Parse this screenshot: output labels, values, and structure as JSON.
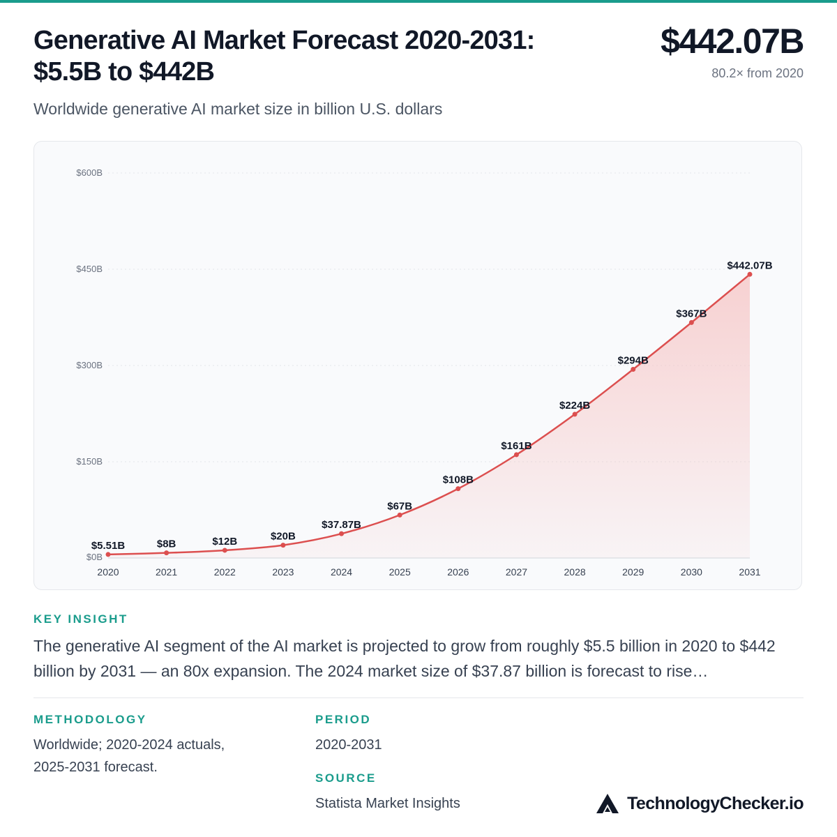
{
  "header": {
    "title_line1": "Generative AI Market Forecast 2020-2031:",
    "title_line2": "$5.5B to $442B",
    "headline_value": "$442.07B",
    "headline_sub": "80.2× from 2020",
    "subtitle": "Worldwide generative AI market size in billion U.S. dollars"
  },
  "chart_data": {
    "type": "area",
    "title": "Worldwide generative AI market size in billion U.S. dollars",
    "categories": [
      "2020",
      "2021",
      "2022",
      "2023",
      "2024",
      "2025",
      "2026",
      "2027",
      "2028",
      "2029",
      "2030",
      "2031"
    ],
    "series": [
      {
        "values": [
          5.51,
          8,
          12,
          20,
          37.87,
          67,
          108,
          161,
          224,
          294,
          367,
          442.07
        ],
        "labels": [
          "$5.51B",
          "$8B",
          "$12B",
          "$20B",
          "$37.87B",
          "$67B",
          "$108B",
          "$161B",
          "$224B",
          "$294B",
          "$367B",
          "$442.07B"
        ]
      }
    ],
    "ylim": [
      0,
      600
    ],
    "y_ticks": [
      0,
      150,
      300,
      450,
      600
    ],
    "y_tick_labels": [
      "$0B",
      "$150B",
      "$300B",
      "$450B",
      "$600B"
    ],
    "grid": "horizontal dotted",
    "line_color": "#dc4f4f",
    "fill_color": "#f6c3c3"
  },
  "insight": {
    "label": "KEY INSIGHT",
    "text": "The generative AI segment of the AI market is projected to grow from roughly $5.5 billion in 2020 to $442 billion by 2031 — an 80x expansion. The 2024 market size of $37.87 billion is forecast to rise…"
  },
  "methodology": {
    "label": "METHODOLOGY",
    "line1": "Worldwide; 2020-2024 actuals,",
    "line2": "2025-2031 forecast."
  },
  "period": {
    "label": "PERIOD",
    "value": "2020-2031"
  },
  "source": {
    "label": "SOURCE",
    "value": "Statista Market Insights"
  },
  "brand": {
    "name": "TechnologyChecker.io",
    "logo_icon": "triangle-logo-icon"
  },
  "colors": {
    "accent": "#1a9c8c",
    "line": "#dc4f4f",
    "text": "#111827"
  }
}
